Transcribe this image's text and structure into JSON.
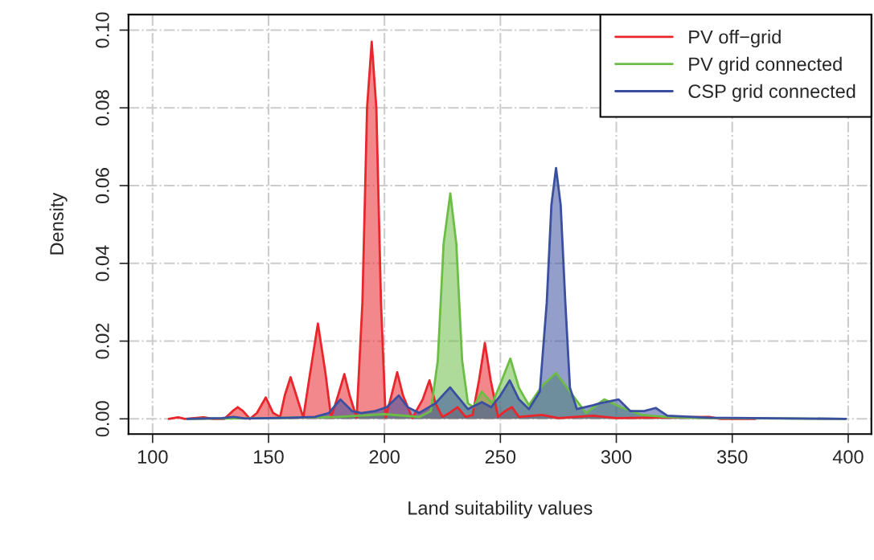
{
  "chart_data": {
    "type": "area",
    "xlabel": "Land suitability values",
    "ylabel": "Density",
    "xlim": [
      89.6,
      410
    ],
    "ylim": [
      -0.0039,
      0.104
    ],
    "xticks": [
      100,
      150,
      200,
      250,
      300,
      350,
      400
    ],
    "yticks": [
      {
        "value": 0,
        "label": "0.00"
      },
      {
        "value": 0.02,
        "label": "0.02"
      },
      {
        "value": 0.04,
        "label": "0.04"
      },
      {
        "value": 0.06,
        "label": "0.06"
      },
      {
        "value": 0.08,
        "label": "0.08"
      },
      {
        "value": 0.1,
        "label": "0.10"
      }
    ],
    "grid": true,
    "legend": "top right",
    "series": [
      {
        "name": "PV off−grid",
        "color": "#e8262b",
        "x": [
          107,
          111,
          114,
          122,
          126,
          131,
          134.5,
          136.7,
          139,
          142,
          145,
          148.8,
          152,
          155,
          157,
          159.5,
          162,
          165,
          168,
          171.3,
          174.5,
          177,
          180,
          182.7,
          185,
          188,
          190.5,
          192.5,
          194.5,
          196.5,
          198.5,
          200.5,
          203,
          205.5,
          208,
          212,
          216.5,
          219.4,
          222,
          225,
          228,
          231.5,
          235,
          238,
          240.8,
          243.3,
          245.8,
          249,
          252,
          255,
          258,
          268,
          275,
          290,
          300,
          340,
          345,
          360
        ],
        "values": [
          0,
          0.0004,
          0,
          0.0004,
          0,
          0,
          0.002,
          0.003,
          0.002,
          0,
          0.0015,
          0.0055,
          0.0015,
          0.0005,
          0.006,
          0.0107,
          0.006,
          0.0003,
          0.012,
          0.0245,
          0.012,
          0.0003,
          0.006,
          0.0115,
          0.006,
          0.0003,
          0.03,
          0.08,
          0.097,
          0.08,
          0.03,
          0.0003,
          0.006,
          0.012,
          0.006,
          0.0002,
          0.005,
          0.0099,
          0.004,
          0.0005,
          0.0015,
          0.003,
          0.0005,
          0.001,
          0.01,
          0.0195,
          0.01,
          0.0005,
          0.002,
          0.003,
          0.0005,
          0.001,
          0.0002,
          0.0008,
          0.0002,
          0.0005,
          0,
          0
        ]
      },
      {
        "name": "PV grid connected",
        "color": "#6cbd45",
        "x": [
          115,
          150,
          180,
          200,
          215,
          220,
          223,
          225.5,
          228.4,
          231,
          233.5,
          236,
          238.4,
          241.9,
          246.5,
          250,
          254.3,
          258,
          262.3,
          268,
          274,
          280,
          286.9,
          294.8,
          302,
          311,
          321,
          340,
          399
        ],
        "values": [
          0,
          0.0002,
          0.0005,
          0.0012,
          0.0005,
          0.002,
          0.015,
          0.045,
          0.058,
          0.045,
          0.015,
          0.004,
          0.003,
          0.007,
          0.004,
          0.009,
          0.0155,
          0.008,
          0.0035,
          0.0085,
          0.0118,
          0.007,
          0.0015,
          0.005,
          0.003,
          0.001,
          0.0005,
          0.0002,
          0
        ]
      },
      {
        "name": "CSP grid connected",
        "color": "#3a4fa0",
        "x": [
          115,
          130,
          135,
          140,
          160,
          170,
          176,
          181,
          186,
          190,
          196,
          201,
          206.2,
          210,
          215,
          222,
          228.3,
          236,
          242,
          246,
          250,
          254,
          258,
          262.3,
          267,
          270,
          272,
          274,
          276,
          278,
          280,
          283,
          290,
          293,
          297,
          301,
          306,
          312,
          317,
          322,
          340,
          399
        ],
        "values": [
          0,
          0.0002,
          0.0005,
          0.0001,
          0.0003,
          0.0005,
          0.0015,
          0.005,
          0.002,
          0.0015,
          0.002,
          0.003,
          0.006,
          0.003,
          0.0015,
          0.004,
          0.0081,
          0.0025,
          0.0043,
          0.003,
          0.006,
          0.0099,
          0.005,
          0.0025,
          0.007,
          0.03,
          0.055,
          0.0645,
          0.055,
          0.03,
          0.008,
          0.0025,
          0.0035,
          0.004,
          0.0045,
          0.005,
          0.002,
          0.002,
          0.0028,
          0.0008,
          0.0003,
          0
        ]
      }
    ]
  }
}
